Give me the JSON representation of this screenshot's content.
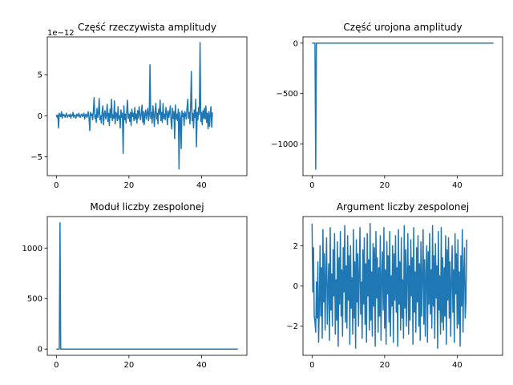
{
  "chart_data": [
    {
      "type": "line",
      "title": "Część rzeczywista amplitudy",
      "offset_label": "1e−12",
      "xlabel": "",
      "ylabel": "",
      "xlim": [
        -2.5,
        52.5
      ],
      "ylim": [
        -7.3,
        9.6
      ],
      "xticks": [
        0,
        20,
        40
      ],
      "yticks": [
        -5,
        0,
        5
      ],
      "ytick_labels": [
        "−5",
        "0",
        "5"
      ],
      "grid": false,
      "x_start": 0,
      "x_step": 0.2,
      "values": [
        0.1,
        -0.2,
        0.1,
        -1.5,
        0.3,
        0,
        -0.1,
        0.5,
        -0.3,
        0.2,
        0,
        0.1,
        -0.2,
        0.1,
        0.3,
        -0.2,
        0,
        0.1,
        -0.1,
        0.2,
        -0.3,
        0.1,
        0,
        0.4,
        -0.2,
        0.1,
        0,
        -0.3,
        0.2,
        0.1,
        -0.1,
        0.3,
        0,
        -0.2,
        0.1,
        0.2,
        -0.1,
        0,
        0.3,
        -0.4,
        0.1,
        0.2,
        -0.2,
        0,
        0.5,
        -0.3,
        -1.8,
        0.4,
        0,
        0.2,
        -0.5,
        0.6,
        2.2,
        -0.3,
        0.1,
        -0.8,
        0.9,
        -0.2,
        0.3,
        2.1,
        -0.5,
        0,
        -0.9,
        0.4,
        1.2,
        -1.1,
        0.2,
        0.6,
        -0.4,
        0.1,
        1.4,
        -0.7,
        0.3,
        -1.2,
        0.8,
        -0.2,
        2.0,
        -0.6,
        0.1,
        -0.3,
        1.8,
        -1.0,
        0.4,
        0.2,
        -0.6,
        1.1,
        -0.4,
        0,
        -1.5,
        0.7,
        -0.2,
        0.3,
        -4.6,
        1.2,
        -0.5,
        0.2,
        -0.9,
        0.6,
        1.9,
        -0.3,
        0.2,
        -0.7,
        0.4,
        -1.2,
        0.8,
        -0.1,
        0.3,
        -0.6,
        1.0,
        -0.4,
        0.2,
        -0.9,
        0.6,
        -0.3,
        1.1,
        0.2,
        -0.5,
        0.3,
        1.3,
        -0.8,
        0.5,
        -1.1,
        0.2,
        0.7,
        -0.4,
        0.3,
        0.9,
        -0.6,
        0.1,
        6.2,
        -0.3,
        0.4,
        -0.9,
        1.2,
        0.2,
        -1.3,
        0.5,
        1.5,
        -0.4,
        0.3,
        -1.0,
        0.8,
        0.2,
        1.9,
        -0.6,
        0.4,
        -0.8,
        1.5,
        -0.3,
        0.2,
        -0.5,
        1.0,
        0.3,
        -1.1,
        0.6,
        -0.2,
        0.4,
        1.2,
        -0.7,
        -1.6,
        0.9,
        -0.3,
        0.5,
        -2.8,
        1.3,
        -0.4,
        0.2,
        -0.6,
        0.8,
        -6.5,
        0.4,
        -0.2,
        -4.0,
        0.6,
        -0.1,
        0.3,
        -1.2,
        0.5,
        0.2,
        -0.4,
        0.9,
        2.0,
        -0.3,
        0.4,
        -1.0,
        1.2,
        5.4,
        -0.6,
        0.3,
        -1.5,
        0.7,
        -0.2,
        2.0,
        -3.8,
        0.4,
        -0.5,
        1.0,
        0.2,
        8.9,
        -0.7,
        0.4,
        -1.1,
        0.6,
        -0.3,
        0.9,
        -0.4,
        1.2,
        -0.8,
        0.3,
        -1.6,
        0.5,
        -1.3,
        0.2,
        1.1,
        -1.4,
        0.4
      ]
    },
    {
      "type": "line",
      "title": "Część urojona amplitudy",
      "xlabel": "",
      "ylabel": "",
      "xlim": [
        -2.5,
        52.5
      ],
      "ylim": [
        -1314,
        62
      ],
      "xticks": [
        0,
        20,
        40
      ],
      "yticks": [
        -1000,
        -500,
        0
      ],
      "ytick_labels": [
        "−1000",
        "−500",
        "0"
      ],
      "grid": false,
      "points": [
        [
          0,
          0
        ],
        [
          0.8,
          0
        ],
        [
          1,
          -1250
        ],
        [
          1.2,
          0
        ],
        [
          50,
          0
        ]
      ]
    },
    {
      "type": "line",
      "title": "Moduł liczby zespolonej",
      "xlabel": "",
      "ylabel": "",
      "xlim": [
        -2.5,
        52.5
      ],
      "ylim": [
        -62,
        1312
      ],
      "xticks": [
        0,
        20,
        40
      ],
      "yticks": [
        0,
        500,
        1000
      ],
      "ytick_labels": [
        "0",
        "500",
        "1000"
      ],
      "grid": false,
      "points": [
        [
          0,
          0
        ],
        [
          0.8,
          0
        ],
        [
          1,
          1250
        ],
        [
          1.2,
          0
        ],
        [
          50,
          0
        ]
      ]
    },
    {
      "type": "line",
      "title": "Argument liczby zespolonej",
      "xlabel": "",
      "ylabel": "",
      "xlim": [
        -2.5,
        52.5
      ],
      "ylim": [
        -3.45,
        3.45
      ],
      "xticks": [
        0,
        20,
        40
      ],
      "yticks": [
        -2,
        0,
        2
      ],
      "ytick_labels": [
        "−2",
        "0",
        "2"
      ],
      "grid": false,
      "x_start": 0,
      "x_step": 0.2,
      "values": [
        3.1,
        -0.3,
        1.9,
        -1.5,
        -1.8,
        -2.3,
        0.2,
        -1.6,
        1.2,
        -2.8,
        -1.0,
        2.0,
        -1.5,
        0.9,
        -2.6,
        2.8,
        -0.8,
        1.6,
        -2.2,
        0.5,
        2.4,
        -1.9,
        -0.2,
        1.1,
        -2.7,
        2.9,
        -1.2,
        0.6,
        -2.0,
        1.8,
        -0.5,
        2.6,
        -2.4,
        0.3,
        -1.7,
        2.2,
        -3.0,
        1.4,
        -0.9,
        2.7,
        -1.5,
        0.8,
        -2.5,
        1.9,
        -0.3,
        3.0,
        -1.8,
        1.0,
        -2.1,
        2.5,
        -0.7,
        1.5,
        -2.9,
        2.0,
        -1.1,
        0.4,
        -2.4,
        2.8,
        -1.6,
        1.2,
        -3.1,
        2.3,
        -0.8,
        1.6,
        -2.0,
        0.6,
        2.9,
        -1.4,
        0.2,
        -2.6,
        1.8,
        -0.9,
        2.4,
        -1.9,
        1.1,
        -2.8,
        2.6,
        -0.5,
        1.3,
        -2.2,
        3.1,
        -1.7,
        0.7,
        -2.5,
        2.1,
        -1.0,
        1.9,
        -3.0,
        2.7,
        -0.6,
        1.4,
        -2.3,
        0.9,
        -1.5,
        2.5,
        -2.7,
        0.4,
        1.7,
        -1.2,
        2.9,
        -2.1,
        0.8,
        -2.9,
        2.2,
        -0.4,
        1.5,
        -1.8,
        2.7,
        -2.5,
        0.5,
        -1.0,
        2.0,
        -2.8,
        1.6,
        -0.7,
        2.5,
        -1.3,
        0.9,
        -3.0,
        2.8,
        -0.9,
        1.2,
        -2.2,
        2.4,
        -1.6,
        0.3,
        -2.6,
        3.0,
        -1.1,
        1.8,
        -2.0,
        0.6,
        2.6,
        -2.4,
        1.0,
        -1.7,
        2.3,
        -0.5,
        1.4,
        -2.9,
        2.9,
        -1.3,
        0.7,
        -2.3,
        1.9,
        -0.8,
        2.5,
        -2.0,
        1.1,
        -2.7,
        2.2,
        -1.5,
        0.4,
        2.8,
        -1.9,
        1.3,
        -2.5,
        0.6,
        2.0,
        -2.8,
        1.7,
        -0.9,
        2.6,
        -1.4,
        0.8,
        -2.1,
        3.0,
        -1.0,
        1.5,
        -2.6,
        2.1,
        -0.6,
        1.0,
        -3.1,
        2.7,
        -1.2,
        0.5,
        -2.4,
        2.9,
        -1.8,
        1.4,
        -2.2,
        0.9,
        -1.5,
        2.5,
        -2.9,
        1.8,
        -0.7,
        2.4,
        -1.6,
        1.2,
        -2.5,
        0.3,
        2.0,
        -1.3,
        0.8,
        -2.8,
        2.6,
        -0.4,
        1.6,
        -2.1,
        2.3,
        -1.9,
        0.7,
        -3.0,
        1.5,
        -1.0,
        2.8,
        -2.3,
        0.6,
        1.9,
        -1.6,
        -0.8,
        2.3
      ]
    }
  ]
}
